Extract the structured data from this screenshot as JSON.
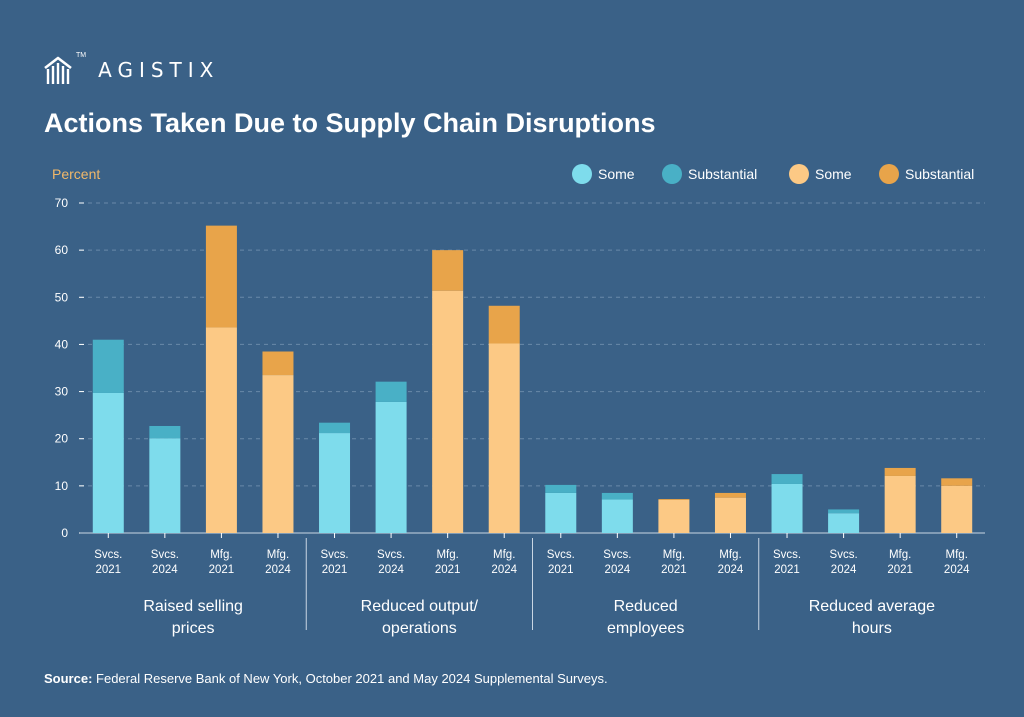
{
  "brand": {
    "name": "AGISTIX",
    "tm": "TM"
  },
  "page_title": "Actions Taken Due to Supply Chain Disruptions",
  "source": {
    "label": "Source:",
    "text": "Federal Reserve Bank of New York, October 2021 and May 2024 Supplemental Surveys."
  },
  "colors": {
    "background": "#3a6187",
    "svcs_some": "#7edcec",
    "svcs_substantial": "#49b0c6",
    "mfg_some": "#fcc985",
    "mfg_substantial": "#e8a44a",
    "ylabel": "#f0b86a"
  },
  "chart_data": {
    "type": "bar",
    "stacked": true,
    "title": "Actions Taken Due to Supply Chain Disruptions",
    "ylabel": "Percent",
    "ylim": [
      0,
      70
    ],
    "yticks": [
      0,
      10,
      20,
      30,
      40,
      50,
      60,
      70
    ],
    "grid": true,
    "legend_position": "top-right",
    "legend": [
      {
        "label": "Some",
        "color": "#7edcec"
      },
      {
        "label": "Substantial",
        "color": "#49b0c6"
      },
      {
        "label": "Some",
        "color": "#fcc985"
      },
      {
        "label": "Substantial",
        "color": "#e8a44a"
      }
    ],
    "groups": [
      {
        "label_lines": [
          "Raised selling",
          "prices"
        ],
        "bars": [
          {
            "label_lines": [
              "Svcs.",
              "2021"
            ],
            "sector": "svcs",
            "some": 29.7,
            "substantial": 11.3
          },
          {
            "label_lines": [
              "Svcs.",
              "2024"
            ],
            "sector": "svcs",
            "some": 20.1,
            "substantial": 2.6
          },
          {
            "label_lines": [
              "Mfg.",
              "2021"
            ],
            "sector": "mfg",
            "some": 43.6,
            "substantial": 21.6
          },
          {
            "label_lines": [
              "Mfg.",
              "2024"
            ],
            "sector": "mfg",
            "some": 33.5,
            "substantial": 5.0
          }
        ]
      },
      {
        "label_lines": [
          "Reduced output/",
          "operations"
        ],
        "bars": [
          {
            "label_lines": [
              "Svcs.",
              "2021"
            ],
            "sector": "svcs",
            "some": 21.2,
            "substantial": 2.2
          },
          {
            "label_lines": [
              "Svcs.",
              "2024"
            ],
            "sector": "svcs",
            "some": 27.8,
            "substantial": 4.3
          },
          {
            "label_lines": [
              "Mfg.",
              "2021"
            ],
            "sector": "mfg",
            "some": 51.4,
            "substantial": 8.6
          },
          {
            "label_lines": [
              "Mfg.",
              "2024"
            ],
            "sector": "mfg",
            "some": 40.2,
            "substantial": 8.0
          }
        ]
      },
      {
        "label_lines": [
          "Reduced",
          "employees"
        ],
        "bars": [
          {
            "label_lines": [
              "Svcs.",
              "2021"
            ],
            "sector": "svcs",
            "some": 8.5,
            "substantial": 1.7
          },
          {
            "label_lines": [
              "Svcs.",
              "2024"
            ],
            "sector": "svcs",
            "some": 7.1,
            "substantial": 1.4
          },
          {
            "label_lines": [
              "Mfg.",
              "2021"
            ],
            "sector": "mfg",
            "some": 7.0,
            "substantial": 0.2
          },
          {
            "label_lines": [
              "Mfg.",
              "2024"
            ],
            "sector": "mfg",
            "some": 7.5,
            "substantial": 1.0
          }
        ]
      },
      {
        "label_lines": [
          "Reduced average",
          "hours"
        ],
        "bars": [
          {
            "label_lines": [
              "Svcs.",
              "2021"
            ],
            "sector": "svcs",
            "some": 10.4,
            "substantial": 2.1
          },
          {
            "label_lines": [
              "Svcs.",
              "2024"
            ],
            "sector": "svcs",
            "some": 4.2,
            "substantial": 0.8
          },
          {
            "label_lines": [
              "Mfg.",
              "2021"
            ],
            "sector": "mfg",
            "some": 12.1,
            "substantial": 1.7
          },
          {
            "label_lines": [
              "Mfg.",
              "2024"
            ],
            "sector": "mfg",
            "some": 10.0,
            "substantial": 1.6
          }
        ]
      }
    ]
  }
}
